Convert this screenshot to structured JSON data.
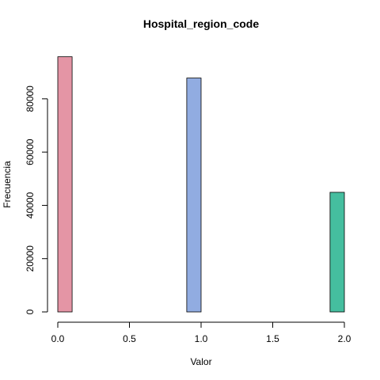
{
  "chart_data": {
    "type": "bar",
    "title": "Hospital_region_code",
    "xlabel": "Valor",
    "ylabel": "Frecuencia",
    "x_ticks": [
      "0.0",
      "0.5",
      "1.0",
      "1.5",
      "2.0"
    ],
    "x_tick_values": [
      0,
      0.5,
      1,
      1.5,
      2
    ],
    "y_ticks": [
      "0",
      "20000",
      "40000",
      "60000",
      "80000"
    ],
    "y_tick_values": [
      0,
      20000,
      40000,
      60000,
      80000
    ],
    "xlim": [
      0,
      2
    ],
    "ylim": [
      0,
      96000
    ],
    "bin_edges": [
      0,
      0.1,
      0.2,
      0.3,
      0.4,
      0.5,
      0.6,
      0.7,
      0.8,
      0.9,
      1.0,
      1.1,
      1.2,
      1.3,
      1.4,
      1.5,
      1.6,
      1.7,
      1.8,
      1.9,
      2.0
    ],
    "values": [
      95800,
      0,
      0,
      0,
      0,
      0,
      0,
      0,
      0,
      87800,
      0,
      0,
      0,
      0,
      0,
      0,
      0,
      0,
      0,
      44900
    ],
    "bar_colors": [
      "#E495A5",
      "#ABB065",
      "#39BEB1",
      "#ACA4E2",
      "#86B875",
      "#D19C2F",
      "#E093C3",
      "#C7A76C",
      "#4CB9CC",
      "#91ACE1",
      "#7DB0DD",
      "#5DBD92",
      "#EE9A8C",
      "#A8A8A8",
      "#CCA3D3",
      "#9FB35A",
      "#5ABBBA",
      "#D39BB5",
      "#B3A66E",
      "#45BE9F"
    ],
    "grid": false,
    "legend": "none"
  }
}
